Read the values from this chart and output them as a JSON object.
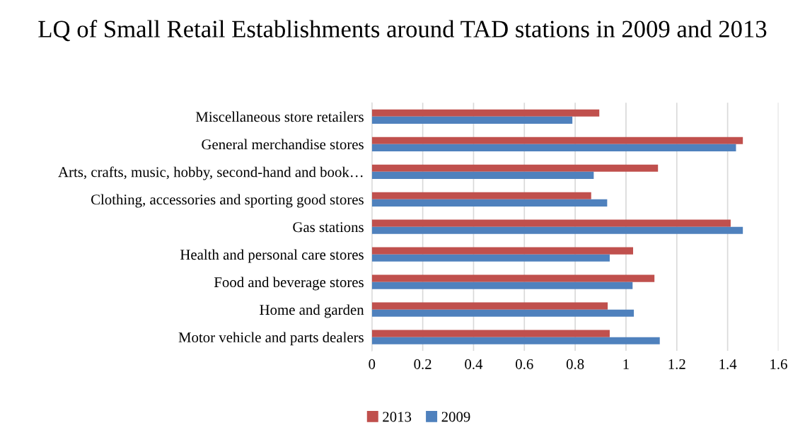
{
  "chart_data": {
    "type": "bar",
    "orientation": "horizontal",
    "title": "LQ of Small Retail Establishments around TAD stations in 2009 and 2013",
    "categories": [
      "Miscellaneous store retailers",
      "General merchandise stores",
      "Arts, crafts, music, hobby, second-hand and book…",
      "Clothing, accessories and sporting good stores",
      "Gas stations",
      "Health and personal care stores",
      "Food and beverage stores",
      "Home and garden",
      "Motor vehicle and parts dealers"
    ],
    "series": [
      {
        "name": "2013",
        "color": "#c0504d",
        "values": [
          0.895,
          1.46,
          1.126,
          0.863,
          1.412,
          1.028,
          1.112,
          0.928,
          0.936
        ]
      },
      {
        "name": "2009",
        "color": "#4f81bd",
        "values": [
          0.789,
          1.433,
          0.873,
          0.926,
          1.46,
          0.936,
          1.026,
          1.031,
          1.133
        ]
      }
    ],
    "xlim": [
      0,
      1.6
    ],
    "xticks": [
      0,
      0.2,
      0.4,
      0.6,
      0.8,
      1,
      1.2,
      1.4,
      1.6
    ],
    "grid": "x",
    "legend": "bottom"
  }
}
